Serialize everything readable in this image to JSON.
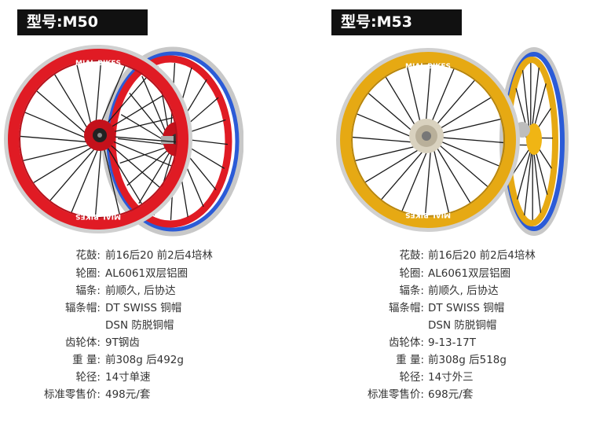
{
  "products": [
    {
      "model_label": "型号:M50",
      "rim_brand": "MIAL BIKES",
      "colors": {
        "rim": "#e01b24",
        "hub": "#c4111b",
        "side_rim": "#2b5bd7",
        "spoke": "#1a1a1a"
      },
      "specs": [
        {
          "label": "花鼓:",
          "value": "前16后20 前2后4培林"
        },
        {
          "label": "轮圈:",
          "value": "AL6061双层铝圈"
        },
        {
          "label": "辐条:",
          "value": "前顺久, 后协达"
        },
        {
          "label": "辐条帽:",
          "value": "DT SWISS 铜帽"
        },
        {
          "label": "",
          "value": "DSN 防脱铜帽"
        },
        {
          "label": "齿轮体:",
          "value": "9T钢齿"
        },
        {
          "label": "重 量:",
          "value": "前308g 后492g"
        },
        {
          "label": "轮径:",
          "value": "14寸单速"
        },
        {
          "label": "标准零售价:",
          "value": "498元/套"
        }
      ]
    },
    {
      "model_label": "型号:M53",
      "rim_brand": "MIAL BIKES",
      "colors": {
        "rim": "#e6a913",
        "hub": "#f0b514",
        "side_rim": "#2b5bd7",
        "spoke": "#1a1a1a"
      },
      "specs": [
        {
          "label": "花鼓:",
          "value": "前16后20 前2后4培林"
        },
        {
          "label": "轮圈:",
          "value": "AL6061双层铝圈"
        },
        {
          "label": "辐条:",
          "value": "前顺久, 后协达"
        },
        {
          "label": "辐条帽:",
          "value": "DT SWISS 铜帽"
        },
        {
          "label": "",
          "value": "DSN 防脱铜帽"
        },
        {
          "label": "齿轮体:",
          "value": "9-13-17T"
        },
        {
          "label": "重 量:",
          "value": "前308g 后518g"
        },
        {
          "label": "轮径:",
          "value": "14寸外三"
        },
        {
          "label": "标准零售价:",
          "value": "698元/套"
        }
      ]
    }
  ]
}
